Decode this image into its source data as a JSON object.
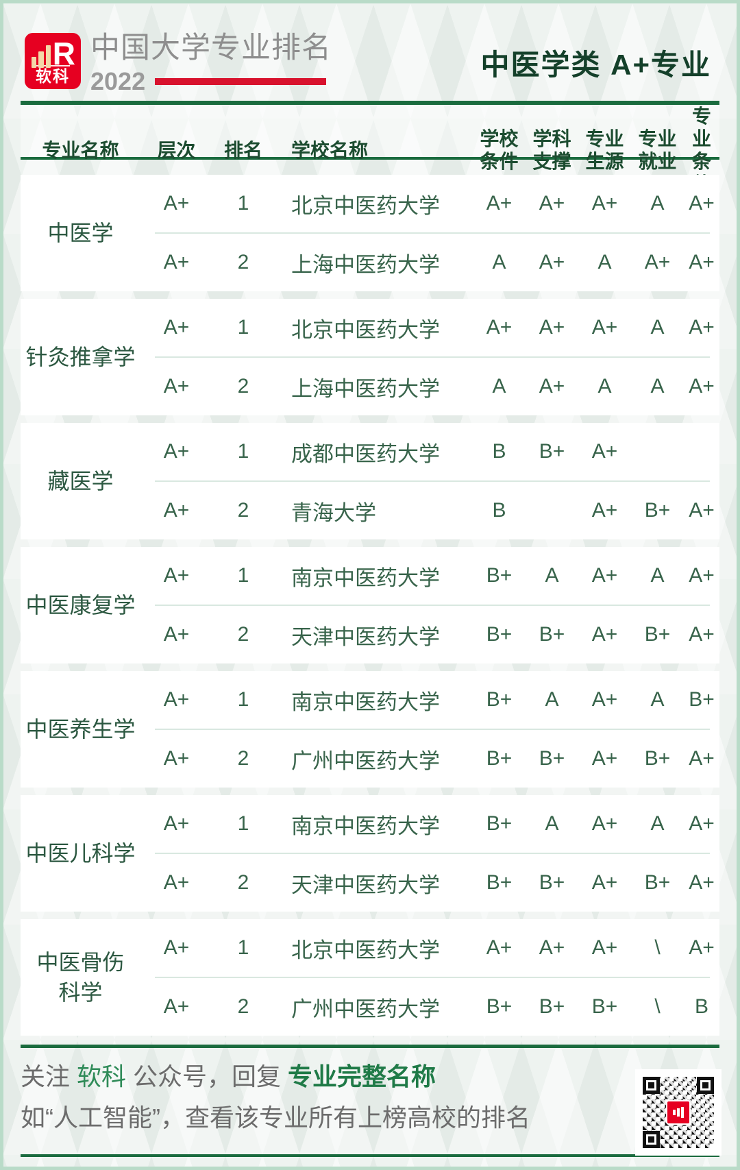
{
  "brand": {
    "logo_text": "软科",
    "logo_mark": "bar-chart-R",
    "title": "中国大学专业排名",
    "year": "2022"
  },
  "page_title": "中医学类 A+专业",
  "table": {
    "col_headers_single": [
      "专业名称",
      "层次",
      "排名",
      "学校名称"
    ],
    "col_headers_double": [
      {
        "l1": "学校",
        "l2": "条件"
      },
      {
        "l1": "学科",
        "l2": "支撑"
      },
      {
        "l1": "专业",
        "l2": "生源"
      },
      {
        "l1": "专业",
        "l2": "就业"
      },
      {
        "l1": "专业",
        "l2": "条件"
      }
    ],
    "groups": [
      {
        "major": "中医学",
        "rows": [
          {
            "level": "A+",
            "rank": "1",
            "school": "北京中医药大学",
            "grades": [
              "A+",
              "A+",
              "A+",
              "A",
              "A+"
            ]
          },
          {
            "level": "A+",
            "rank": "2",
            "school": "上海中医药大学",
            "grades": [
              "A",
              "A+",
              "A",
              "A+",
              "A+"
            ]
          }
        ]
      },
      {
        "major": "针灸推拿学",
        "rows": [
          {
            "level": "A+",
            "rank": "1",
            "school": "北京中医药大学",
            "grades": [
              "A+",
              "A+",
              "A+",
              "A",
              "A+"
            ]
          },
          {
            "level": "A+",
            "rank": "2",
            "school": "上海中医药大学",
            "grades": [
              "A",
              "A+",
              "A",
              "A",
              "A+"
            ]
          }
        ]
      },
      {
        "major": "藏医学",
        "rows": [
          {
            "level": "A+",
            "rank": "1",
            "school": "成都中医药大学",
            "grades": [
              "B",
              "B+",
              "A+",
              "",
              ""
            ]
          },
          {
            "level": "A+",
            "rank": "2",
            "school": "青海大学",
            "grades": [
              "B",
              "",
              "A+",
              "B+",
              "A+"
            ]
          }
        ]
      },
      {
        "major": "中医康复学",
        "rows": [
          {
            "level": "A+",
            "rank": "1",
            "school": "南京中医药大学",
            "grades": [
              "B+",
              "A",
              "A+",
              "A",
              "A+"
            ]
          },
          {
            "level": "A+",
            "rank": "2",
            "school": "天津中医药大学",
            "grades": [
              "B+",
              "B+",
              "A+",
              "B+",
              "A+"
            ]
          }
        ]
      },
      {
        "major": "中医养生学",
        "rows": [
          {
            "level": "A+",
            "rank": "1",
            "school": "南京中医药大学",
            "grades": [
              "B+",
              "A",
              "A+",
              "A",
              "B+"
            ]
          },
          {
            "level": "A+",
            "rank": "2",
            "school": "广州中医药大学",
            "grades": [
              "B+",
              "B+",
              "A+",
              "B+",
              "A+"
            ]
          }
        ]
      },
      {
        "major": "中医儿科学",
        "rows": [
          {
            "level": "A+",
            "rank": "1",
            "school": "南京中医药大学",
            "grades": [
              "B+",
              "A",
              "A+",
              "A",
              "A+"
            ]
          },
          {
            "level": "A+",
            "rank": "2",
            "school": "天津中医药大学",
            "grades": [
              "B+",
              "B+",
              "A+",
              "B+",
              "A+"
            ]
          }
        ]
      },
      {
        "major": "中医骨伤\n科学",
        "rows": [
          {
            "level": "A+",
            "rank": "1",
            "school": "北京中医药大学",
            "grades": [
              "A+",
              "A+",
              "A+",
              "\\",
              "A+"
            ]
          },
          {
            "level": "A+",
            "rank": "2",
            "school": "广州中医药大学",
            "grades": [
              "B+",
              "B+",
              "B+",
              "\\",
              "B"
            ]
          }
        ]
      }
    ]
  },
  "footer": {
    "line1_part1": "关注 ",
    "line1_brand": "软科",
    "line1_part2": " 公众号，回复 ",
    "line1_highlight": "专业完整名称",
    "line2": "如“人工智能”，查看该专业所有上榜高校的排名",
    "qr": "qr-code"
  },
  "colors": {
    "accent_green_dark": "#14402a",
    "rule_green": "#1a6b3e",
    "cell_green": "#38644b",
    "brand_red": "#e60021",
    "red_bar": "#d8122d",
    "footer_green": "#2f8b58",
    "page_bg": "#e4ebe7",
    "card_bg": "#ffffff",
    "border_green": "#b9dbc8"
  }
}
